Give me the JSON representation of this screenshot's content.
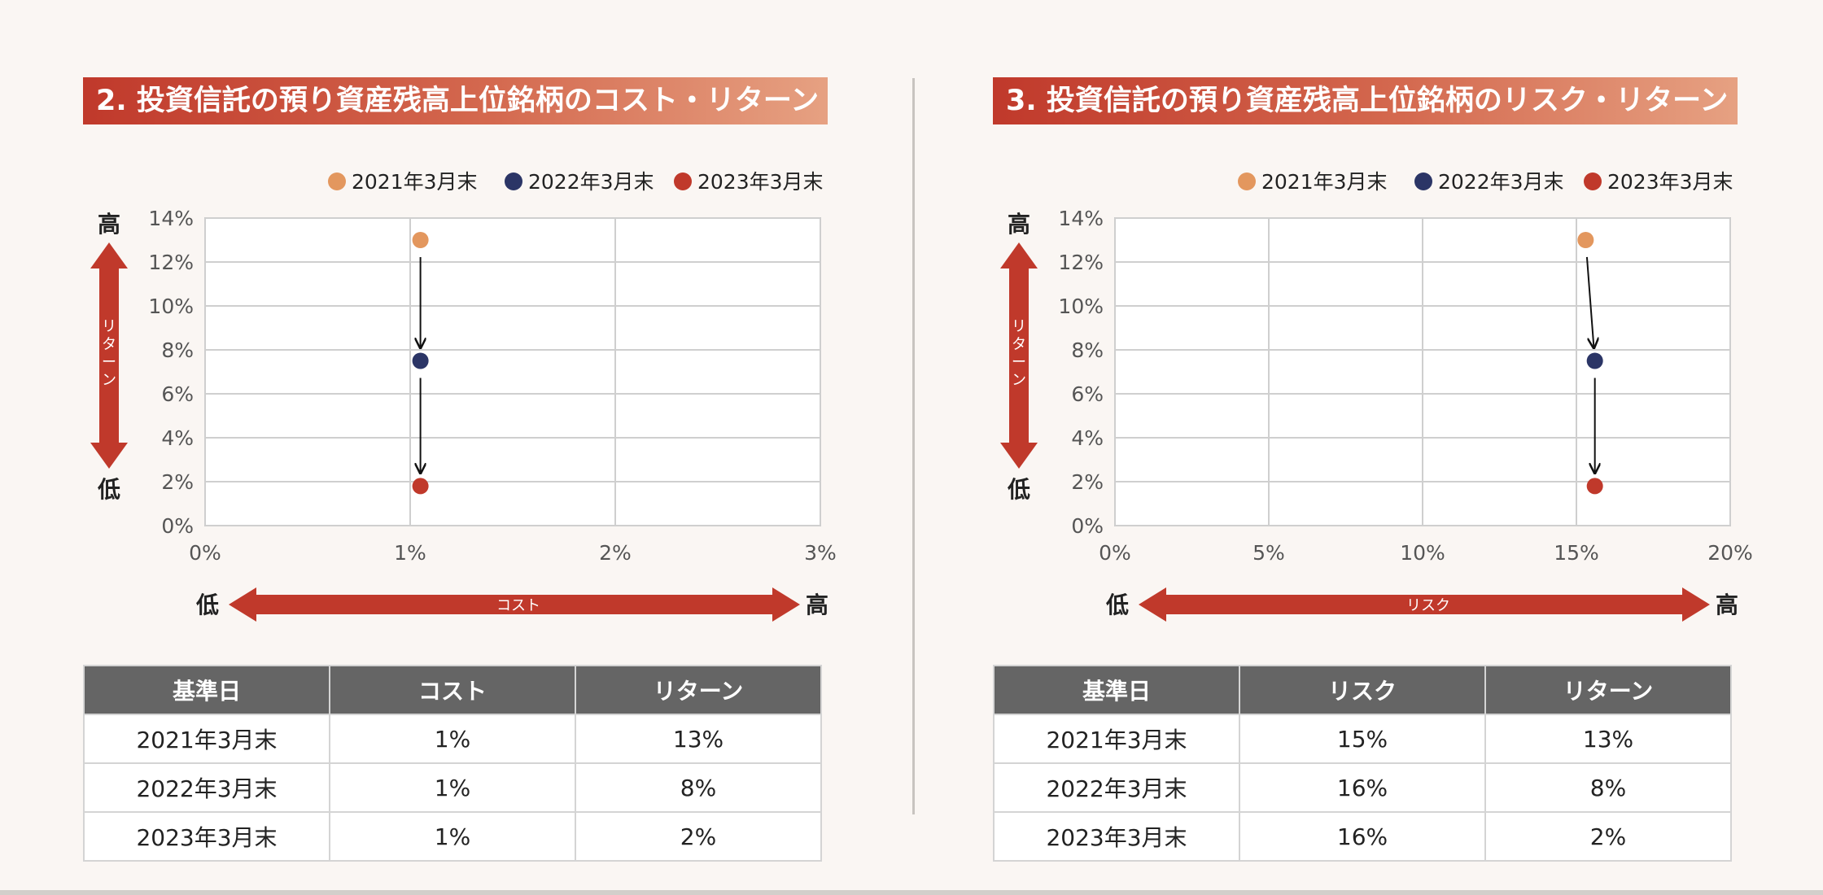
{
  "left": {
    "title": "2. 投資信託の預り資産残高上位銘柄のコスト・リターン",
    "y_axis_label": "リターン",
    "x_axis_label": "コスト",
    "high_label": "高",
    "low_label": "低",
    "table": {
      "headers": [
        "基準日",
        "コスト",
        "リターン"
      ],
      "rows": [
        [
          "2021年3月末",
          "1%",
          "13%"
        ],
        [
          "2022年3月末",
          "1%",
          "8%"
        ],
        [
          "2023年3月末",
          "1%",
          "2%"
        ]
      ]
    }
  },
  "right": {
    "title": "3. 投資信託の預り資産残高上位銘柄のリスク・リターン",
    "y_axis_label": "リターン",
    "x_axis_label": "リスク",
    "high_label": "高",
    "low_label": "低",
    "table": {
      "headers": [
        "基準日",
        "リスク",
        "リターン"
      ],
      "rows": [
        [
          "2021年3月末",
          "15%",
          "13%"
        ],
        [
          "2022年3月末",
          "16%",
          "8%"
        ],
        [
          "2023年3月末",
          "16%",
          "2%"
        ]
      ]
    }
  },
  "colors": {
    "series_2021": "#e3975e",
    "series_2022": "#2b3566",
    "series_2023": "#c0392b",
    "accent": "#c0392b"
  },
  "chart_data": [
    {
      "type": "scatter",
      "xlim": [
        0,
        3
      ],
      "ylim": [
        0,
        14
      ],
      "x_ticks": [
        0,
        1,
        2,
        3
      ],
      "x_tick_labels": [
        "0%",
        "1%",
        "2%",
        "3%"
      ],
      "y_ticks": [
        0,
        2,
        4,
        6,
        8,
        10,
        12,
        14
      ],
      "y_tick_labels": [
        "0%",
        "2%",
        "4%",
        "6%",
        "8%",
        "10%",
        "12%",
        "14%"
      ],
      "grid": true,
      "legend_position": "top-right",
      "series": [
        {
          "name": "2021年3月末",
          "x": 1.05,
          "y": 13.0
        },
        {
          "name": "2022年3月末",
          "x": 1.05,
          "y": 7.5
        },
        {
          "name": "2023年3月末",
          "x": 1.05,
          "y": 1.8
        }
      ],
      "arrows": [
        [
          0,
          1
        ],
        [
          1,
          2
        ]
      ]
    },
    {
      "type": "scatter",
      "xlim": [
        0,
        20
      ],
      "ylim": [
        0,
        14
      ],
      "x_ticks": [
        0,
        5,
        10,
        15,
        20
      ],
      "x_tick_labels": [
        "0%",
        "5%",
        "10%",
        "15%",
        "20%"
      ],
      "y_ticks": [
        0,
        2,
        4,
        6,
        8,
        10,
        12,
        14
      ],
      "y_tick_labels": [
        "0%",
        "2%",
        "4%",
        "6%",
        "8%",
        "10%",
        "12%",
        "14%"
      ],
      "grid": true,
      "legend_position": "top-right",
      "series": [
        {
          "name": "2021年3月末",
          "x": 15.3,
          "y": 13.0
        },
        {
          "name": "2022年3月末",
          "x": 15.6,
          "y": 7.5
        },
        {
          "name": "2023年3月末",
          "x": 15.6,
          "y": 1.8
        }
      ],
      "arrows": [
        [
          0,
          1
        ],
        [
          1,
          2
        ]
      ]
    }
  ]
}
